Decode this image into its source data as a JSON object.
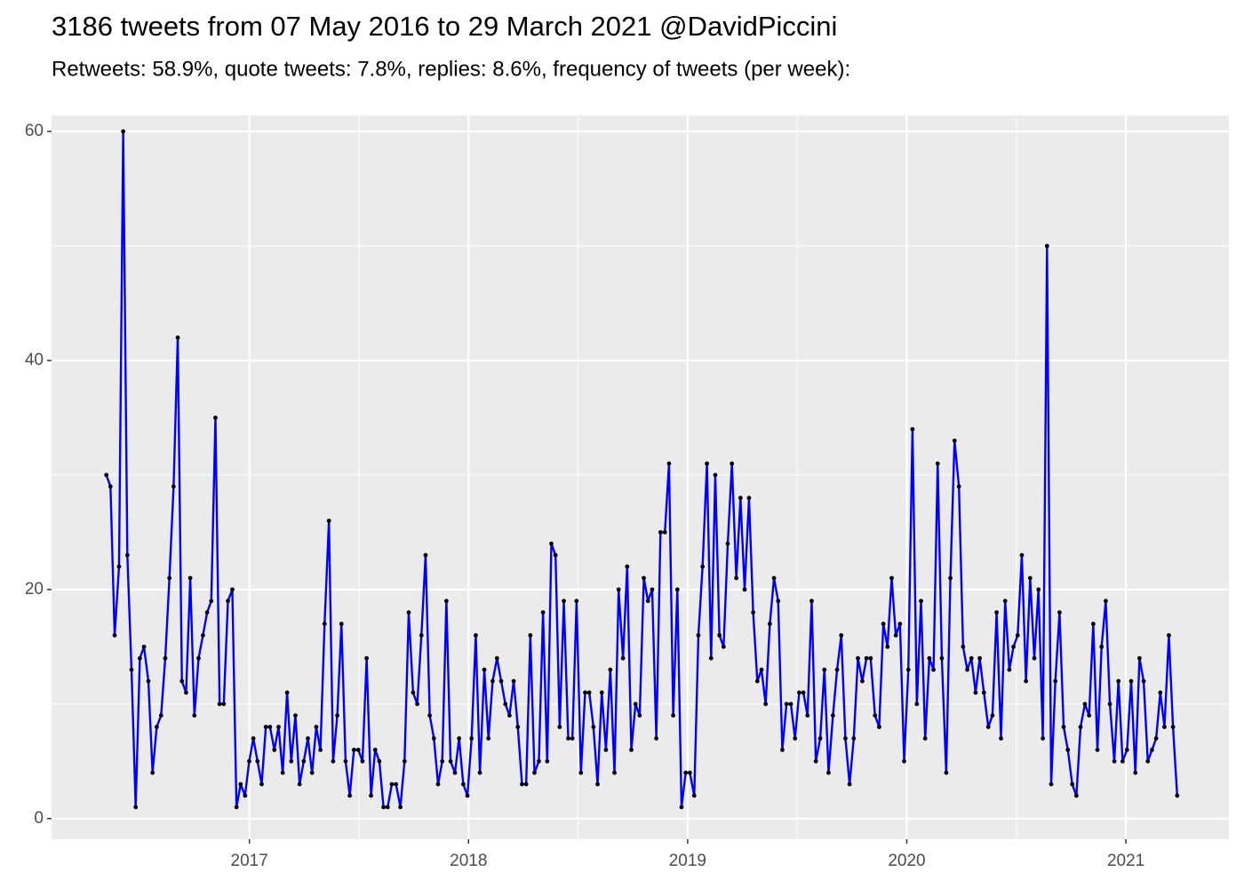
{
  "chart_data": {
    "type": "line",
    "title": "3186 tweets from 07 May 2016 to 29 March 2021 @DavidPiccini",
    "subtitle": "Retweets: 58.9%, quote tweets: 7.8%, replies: 8.6%, frequency of tweets (per week):",
    "color": "#0000ff",
    "point_color": "#000000",
    "grid": true,
    "xlim": [
      2016.097,
      2021.47
    ],
    "xticks": [
      2017,
      2018,
      2019,
      2020,
      2021
    ],
    "ylim": [
      -1.8,
      61.4
    ],
    "yticks": [
      0,
      20,
      40,
      60
    ],
    "x": [
      2016.347,
      2016.366,
      2016.385,
      2016.405,
      2016.424,
      2016.443,
      2016.462,
      2016.481,
      2016.5,
      2016.519,
      2016.539,
      2016.558,
      2016.577,
      2016.597,
      2016.616,
      2016.635,
      2016.654,
      2016.673,
      2016.692,
      2016.711,
      2016.73,
      2016.749,
      2016.768,
      2016.788,
      2016.807,
      2016.826,
      2016.845,
      2016.864,
      2016.883,
      2016.902,
      2016.922,
      2016.941,
      2016.96,
      2016.98,
      2016.999,
      2017.018,
      2017.037,
      2017.056,
      2017.075,
      2017.094,
      2017.114,
      2017.133,
      2017.152,
      2017.172,
      2017.191,
      2017.21,
      2017.229,
      2017.248,
      2017.267,
      2017.286,
      2017.305,
      2017.324,
      2017.343,
      2017.363,
      2017.382,
      2017.401,
      2017.42,
      2017.439,
      2017.458,
      2017.477,
      2017.497,
      2017.516,
      2017.535,
      2017.555,
      2017.574,
      2017.593,
      2017.612,
      2017.631,
      2017.65,
      2017.669,
      2017.689,
      2017.708,
      2017.727,
      2017.747,
      2017.766,
      2017.785,
      2017.804,
      2017.823,
      2017.842,
      2017.861,
      2017.88,
      2017.899,
      2017.918,
      2017.938,
      2017.957,
      2017.976,
      2017.995,
      2018.014,
      2018.033,
      2018.052,
      2018.072,
      2018.091,
      2018.11,
      2018.13,
      2018.149,
      2018.168,
      2018.187,
      2018.206,
      2018.225,
      2018.244,
      2018.263,
      2018.282,
      2018.301,
      2018.321,
      2018.34,
      2018.359,
      2018.378,
      2018.397,
      2018.416,
      2018.435,
      2018.455,
      2018.474,
      2018.493,
      2018.513,
      2018.532,
      2018.551,
      2018.57,
      2018.589,
      2018.608,
      2018.627,
      2018.647,
      2018.666,
      2018.685,
      2018.705,
      2018.724,
      2018.743,
      2018.762,
      2018.781,
      2018.8,
      2018.819,
      2018.838,
      2018.857,
      2018.876,
      2018.896,
      2018.915,
      2018.934,
      2018.953,
      2018.972,
      2018.991,
      2019.01,
      2019.03,
      2019.049,
      2019.068,
      2019.088,
      2019.107,
      2019.126,
      2019.145,
      2019.164,
      2019.183,
      2019.202,
      2019.222,
      2019.241,
      2019.26,
      2019.28,
      2019.299,
      2019.318,
      2019.337,
      2019.356,
      2019.375,
      2019.394,
      2019.413,
      2019.432,
      2019.451,
      2019.471,
      2019.49,
      2019.509,
      2019.528,
      2019.547,
      2019.566,
      2019.585,
      2019.605,
      2019.624,
      2019.643,
      2019.663,
      2019.682,
      2019.701,
      2019.72,
      2019.739,
      2019.758,
      2019.777,
      2019.797,
      2019.816,
      2019.835,
      2019.855,
      2019.874,
      2019.893,
      2019.912,
      2019.931,
      2019.95,
      2019.969,
      2019.988,
      2020.007,
      2020.026,
      2020.046,
      2020.065,
      2020.084,
      2020.103,
      2020.122,
      2020.141,
      2020.16,
      2020.18,
      2020.199,
      2020.218,
      2020.238,
      2020.257,
      2020.276,
      2020.295,
      2020.314,
      2020.333,
      2020.352,
      2020.372,
      2020.391,
      2020.41,
      2020.43,
      2020.449,
      2020.468,
      2020.487,
      2020.506,
      2020.525,
      2020.544,
      2020.563,
      2020.582,
      2020.601,
      2020.621,
      2020.64,
      2020.659,
      2020.678,
      2020.697,
      2020.716,
      2020.735,
      2020.755,
      2020.774,
      2020.793,
      2020.813,
      2020.832,
      2020.851,
      2020.87,
      2020.889,
      2020.908,
      2020.927,
      2020.947,
      2020.966,
      2020.985,
      2021.005,
      2021.024,
      2021.043,
      2021.062,
      2021.081,
      2021.1,
      2021.119,
      2021.138,
      2021.157,
      2021.176,
      2021.196,
      2021.215,
      2021.234
    ],
    "values": [
      30,
      29,
      16,
      22,
      60,
      23,
      13,
      1,
      14,
      15,
      12,
      4,
      8,
      9,
      14,
      21,
      29,
      42,
      12,
      11,
      21,
      9,
      14,
      16,
      18,
      19,
      35,
      10,
      10,
      19,
      20,
      1,
      3,
      2,
      5,
      7,
      5,
      3,
      8,
      8,
      6,
      8,
      4,
      11,
      5,
      9,
      3,
      5,
      7,
      4,
      8,
      6,
      17,
      26,
      5,
      9,
      17,
      5,
      2,
      6,
      6,
      5,
      14,
      2,
      6,
      5,
      1,
      1,
      3,
      3,
      1,
      5,
      18,
      11,
      10,
      16,
      23,
      9,
      7,
      3,
      5,
      19,
      5,
      4,
      7,
      3,
      2,
      7,
      16,
      4,
      13,
      7,
      12,
      14,
      12,
      10,
      9,
      12,
      8,
      3,
      3,
      16,
      4,
      5,
      18,
      5,
      24,
      23,
      8,
      19,
      7,
      7,
      19,
      4,
      11,
      11,
      8,
      3,
      11,
      6,
      13,
      4,
      20,
      14,
      22,
      6,
      10,
      9,
      21,
      19,
      20,
      7,
      25,
      25,
      31,
      9,
      20,
      1,
      4,
      4,
      2,
      16,
      22,
      31,
      14,
      30,
      16,
      15,
      24,
      31,
      21,
      28,
      20,
      28,
      18,
      12,
      13,
      10,
      17,
      21,
      19,
      6,
      10,
      10,
      7,
      11,
      11,
      9,
      19,
      5,
      7,
      13,
      4,
      9,
      13,
      16,
      7,
      3,
      7,
      14,
      12,
      14,
      14,
      9,
      8,
      17,
      15,
      21,
      16,
      17,
      5,
      13,
      34,
      10,
      19,
      7,
      14,
      13,
      31,
      14,
      4,
      21,
      33,
      29,
      15,
      13,
      14,
      11,
      14,
      11,
      8,
      9,
      18,
      7,
      19,
      13,
      15,
      16,
      23,
      12,
      21,
      14,
      20,
      7,
      50,
      3,
      12,
      18,
      8,
      6,
      3,
      2,
      8,
      10,
      9,
      17,
      6,
      15,
      19,
      10,
      5,
      12,
      5,
      6,
      12,
      4,
      14,
      12,
      5,
      6,
      7,
      11,
      8,
      16,
      8,
      2
    ]
  }
}
